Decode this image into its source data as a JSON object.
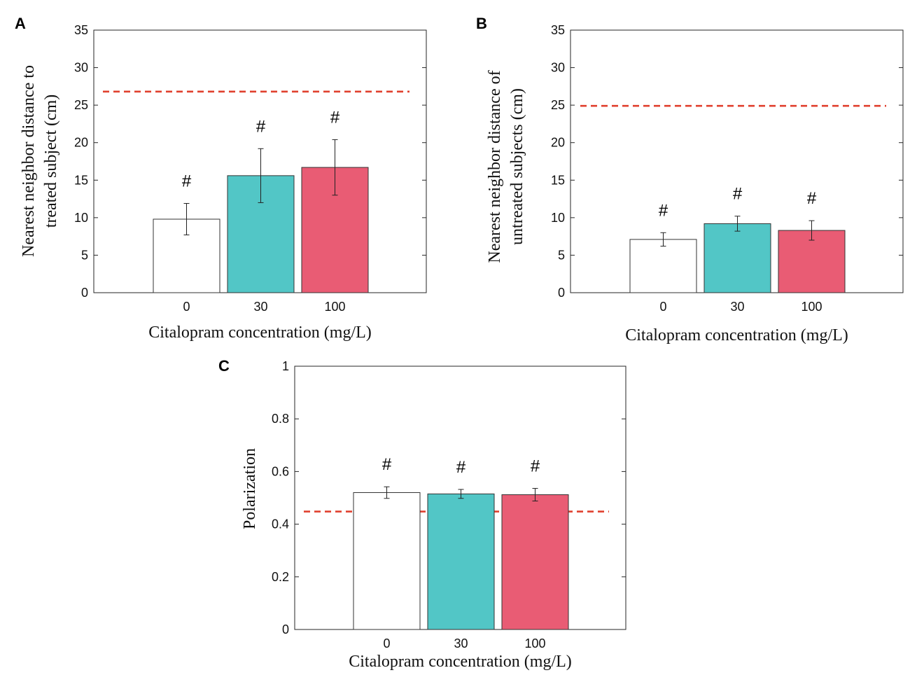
{
  "chart_data": [
    {
      "type": "bar",
      "panel_label": "A",
      "categories": [
        "0",
        "30",
        "100"
      ],
      "values": [
        9.8,
        15.6,
        16.7
      ],
      "errors": [
        2.1,
        3.6,
        3.7
      ],
      "annotations": [
        "#",
        "#",
        "#"
      ],
      "reference_line": 26.8,
      "ylim": [
        0,
        35
      ],
      "yticks": [
        0,
        5,
        10,
        15,
        20,
        25,
        30,
        35
      ],
      "ylabel_lines": [
        "Nearest neighbor distance to",
        "treated subject (cm)"
      ],
      "xlabel": "Citalopram concentration (mg/L)",
      "bar_colors": [
        "#ffffff",
        "#52c6c6",
        "#e95c74"
      ],
      "reference_color": "#e0402e"
    },
    {
      "type": "bar",
      "panel_label": "B",
      "categories": [
        "0",
        "30",
        "100"
      ],
      "values": [
        7.1,
        9.2,
        8.3
      ],
      "errors": [
        0.9,
        1.0,
        1.3
      ],
      "annotations": [
        "#",
        "#",
        "#"
      ],
      "reference_line": 24.9,
      "ylim": [
        0,
        35
      ],
      "yticks": [
        0,
        5,
        10,
        15,
        20,
        25,
        30,
        35
      ],
      "ylabel_lines": [
        "Nearest neighbor distance of",
        "untreated subjects (cm)"
      ],
      "xlabel": "Citalopram concentration (mg/L)",
      "bar_colors": [
        "#ffffff",
        "#52c6c6",
        "#e95c74"
      ],
      "reference_color": "#e0402e"
    },
    {
      "type": "bar",
      "panel_label": "C",
      "categories": [
        "0",
        "30",
        "100"
      ],
      "values": [
        0.52,
        0.515,
        0.512
      ],
      "errors": [
        0.022,
        0.017,
        0.024
      ],
      "annotations": [
        "#",
        "#",
        "#"
      ],
      "reference_line": 0.448,
      "ylim": [
        0,
        1
      ],
      "yticks": [
        0,
        0.2,
        0.4,
        0.6,
        0.8,
        1
      ],
      "ylabel_lines": [
        "Polarization"
      ],
      "xlabel": "Citalopram concentration (mg/L)",
      "bar_colors": [
        "#ffffff",
        "#52c6c6",
        "#e95c74"
      ],
      "reference_color": "#e0402e"
    }
  ]
}
